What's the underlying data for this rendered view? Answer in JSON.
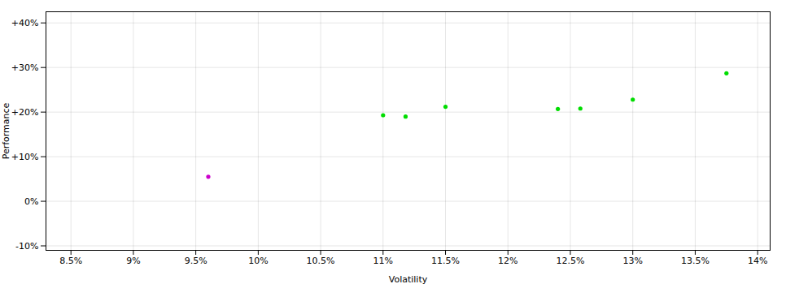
{
  "chart_data": {
    "type": "scatter",
    "xlabel": "Volatility",
    "ylabel": "Performance",
    "xlim": [
      0.083,
      0.141
    ],
    "ylim": [
      -0.11,
      0.425
    ],
    "xticks": [
      {
        "value": 0.085,
        "label": "8.5%"
      },
      {
        "value": 0.09,
        "label": "9%"
      },
      {
        "value": 0.095,
        "label": "9.5%"
      },
      {
        "value": 0.1,
        "label": "10%"
      },
      {
        "value": 0.105,
        "label": "10.5%"
      },
      {
        "value": 0.11,
        "label": "11%"
      },
      {
        "value": 0.115,
        "label": "11.5%"
      },
      {
        "value": 0.12,
        "label": "12%"
      },
      {
        "value": 0.125,
        "label": "12.5%"
      },
      {
        "value": 0.13,
        "label": "13%"
      },
      {
        "value": 0.135,
        "label": "13.5%"
      },
      {
        "value": 0.14,
        "label": "14%"
      }
    ],
    "yticks": [
      {
        "value": -0.1,
        "label": "-10%"
      },
      {
        "value": 0.0,
        "label": "0%"
      },
      {
        "value": 0.1,
        "label": "+10%"
      },
      {
        "value": 0.2,
        "label": "+20%"
      },
      {
        "value": 0.3,
        "label": "+30%"
      },
      {
        "value": 0.4,
        "label": "+40%"
      }
    ],
    "grid": true,
    "series": [
      {
        "color": "#00dd00",
        "x": [
          0.11,
          0.1118,
          0.115,
          0.124,
          0.1258,
          0.13,
          0.1375
        ],
        "values": [
          0.193,
          0.19,
          0.212,
          0.207,
          0.208,
          0.228,
          0.287
        ]
      },
      {
        "color": "#cc00cc",
        "x": [
          0.096
        ],
        "values": [
          0.055
        ]
      }
    ]
  }
}
